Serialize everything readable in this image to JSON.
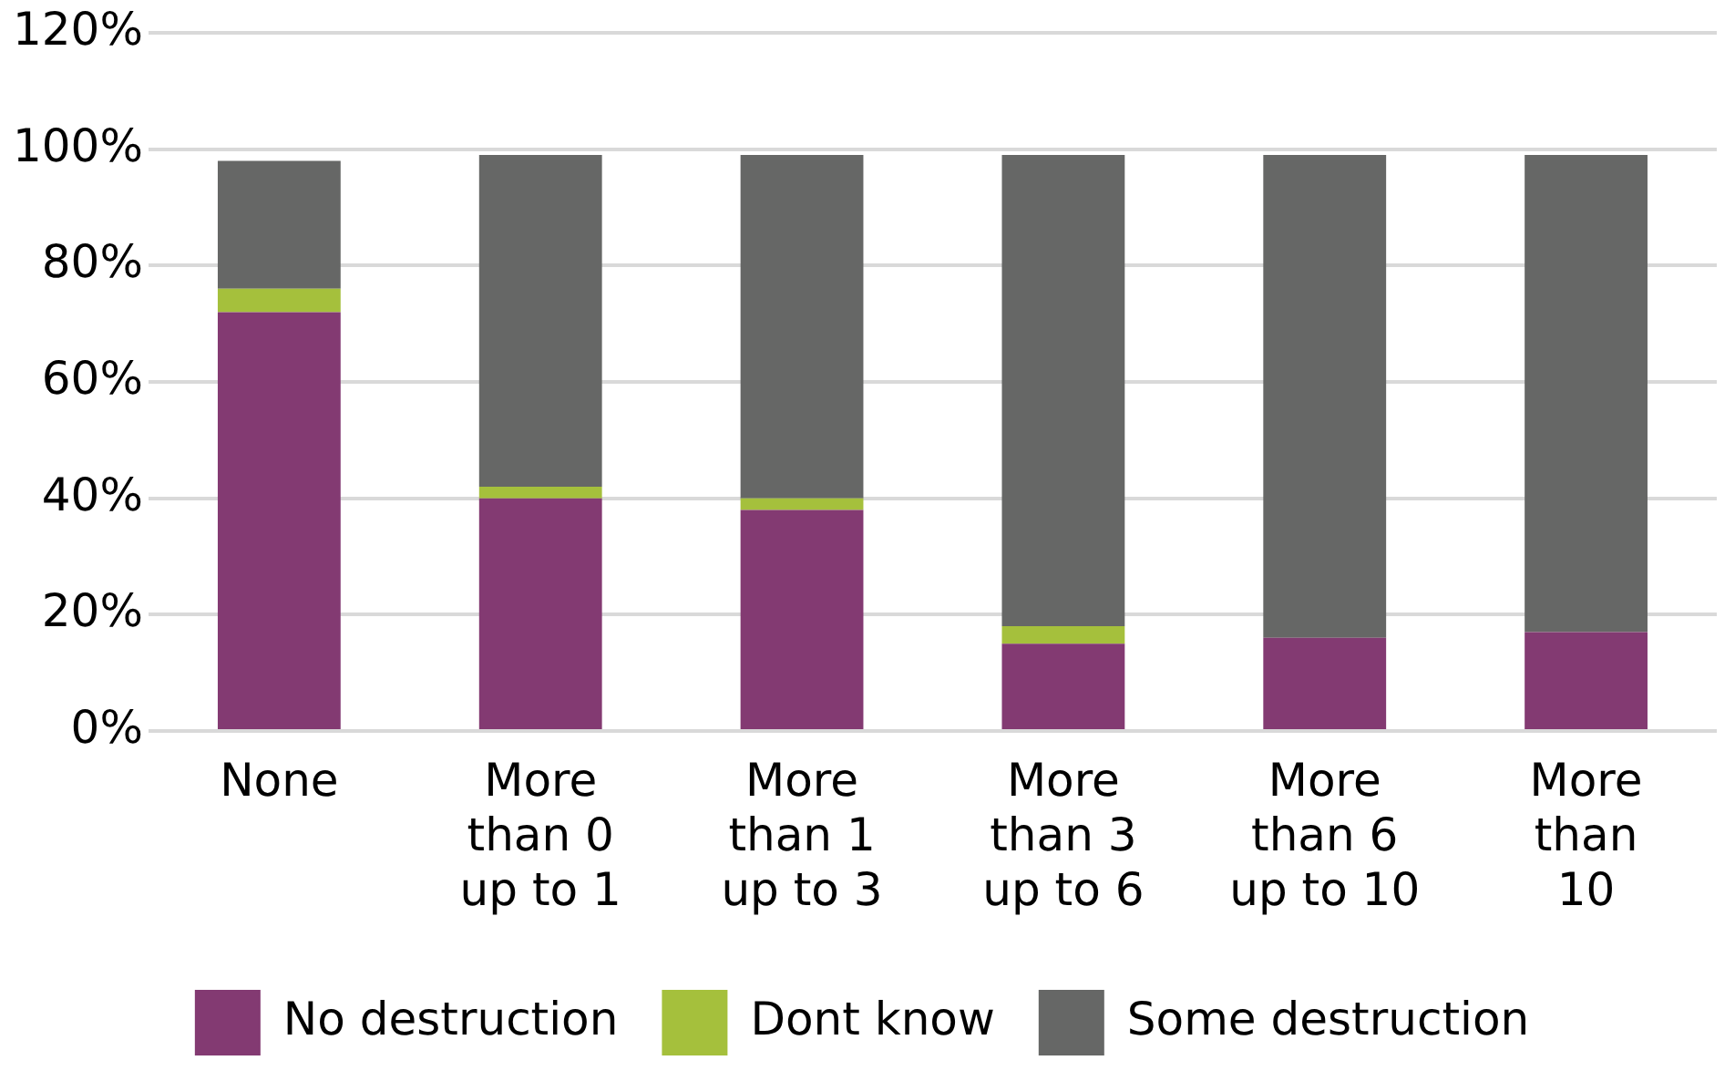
{
  "chart_data": {
    "type": "bar",
    "stacked": true,
    "categories": [
      "None",
      "More\nthan 0\nup to 1",
      "More\nthan 1\nup to 3",
      "More\nthan 3\nup to 6",
      "More\nthan 6\nup to 10",
      "More\nthan\n10"
    ],
    "series": [
      {
        "name": "No destruction",
        "color": "#833a72",
        "values": [
          72,
          40,
          38,
          15,
          16,
          17
        ]
      },
      {
        "name": "Dont know",
        "color": "#a5c03c",
        "values": [
          4,
          2,
          2,
          3,
          null,
          null
        ]
      },
      {
        "name": "Some destruction",
        "color": "#666766",
        "values": [
          22,
          57,
          59,
          81,
          83,
          82
        ]
      }
    ],
    "ylim": [
      0,
      120
    ],
    "yticks": [
      {
        "value": 0,
        "label": "0%"
      },
      {
        "value": 20,
        "label": "20%"
      },
      {
        "value": 40,
        "label": "40%"
      },
      {
        "value": 60,
        "label": "60%"
      },
      {
        "value": 80,
        "label": "80%"
      },
      {
        "value": 100,
        "label": "100%"
      },
      {
        "value": 120,
        "label": "120%"
      }
    ],
    "grid": "y",
    "legend": "bottom"
  }
}
